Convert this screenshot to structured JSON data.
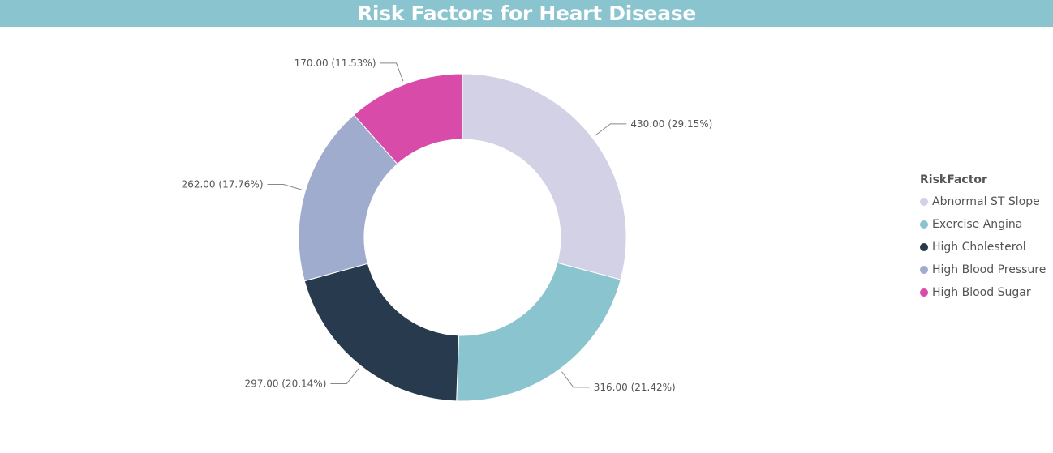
{
  "header": {
    "title": "Risk Factors for Heart Disease"
  },
  "chart_data": {
    "type": "pie",
    "variant": "donut",
    "legend_title": "RiskFactor",
    "legend_position": "right",
    "categories": [
      "Abnormal ST Slope",
      "Exercise Angina",
      "High Cholesterol",
      "High Blood Pressure",
      "High Blood Sugar"
    ],
    "values": [
      430,
      316,
      297,
      262,
      170
    ],
    "data_labels": [
      "430.00 (29.15%)",
      "316.00 (21.42%)",
      "297.00 (20.14%)",
      "262.00 (17.76%)",
      "170.00 (11.53%)"
    ],
    "colors": [
      "#d2d1e5",
      "#89c4cf",
      "#283a4e",
      "#9faccd",
      "#d84ba8"
    ]
  }
}
